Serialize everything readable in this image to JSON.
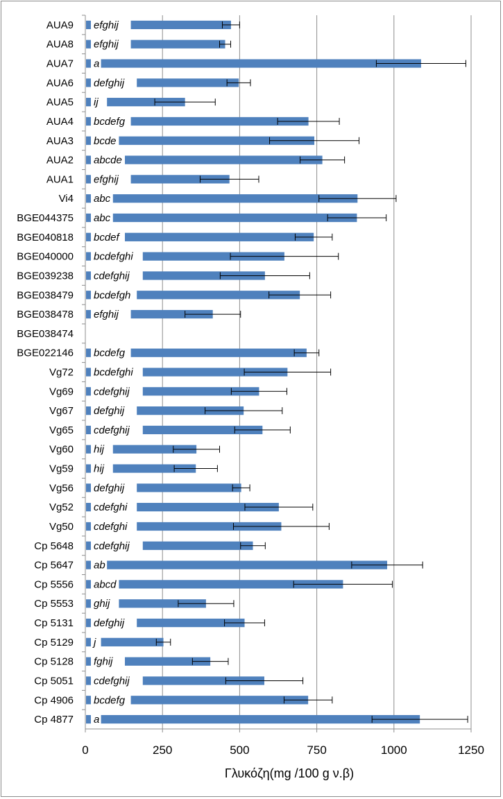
{
  "chart_data": {
    "type": "bar",
    "orientation": "horizontal",
    "title": "",
    "xlabel": "Γλυκόζη(mg /100 g ν.β)",
    "ylabel": "",
    "xlim": [
      0,
      1250
    ],
    "xticks": [
      "0",
      "250",
      "500",
      "750",
      "1000",
      "1250"
    ],
    "grid": "vertical",
    "legend": "none",
    "bar_color": "#4f81bd",
    "categories": [
      "AUA9",
      "AUA8",
      "AUA7",
      "AUA6",
      "AUA5",
      "AUA4",
      "AUA3",
      "AUA2",
      "AUA1",
      "Vi4",
      "BGE044375",
      "BGE040818",
      "BGE040000",
      "BGE039238",
      "BGE038479",
      "BGE038478",
      "BGE038474",
      "BGE022146",
      "Vg72",
      "Vg69",
      "Vg67",
      "Vg65",
      "Vg60",
      "Vg59",
      "Vg56",
      "Vg52",
      "Vg50",
      "Cp 5648",
      "Cp 5647",
      "Cp 5556",
      "Cp 5553",
      "Cp 5131",
      "Cp 5129",
      "Cp 5128",
      "Cp 5051",
      "Cp 4906",
      "Cp 4877"
    ],
    "values": [
      472,
      453,
      1088,
      497,
      323,
      723,
      742,
      768,
      467,
      882,
      880,
      740,
      645,
      582,
      695,
      413,
      null,
      717,
      655,
      563,
      513,
      574,
      360,
      358,
      505,
      627,
      635,
      543,
      978,
      835,
      391,
      516,
      253,
      405,
      580,
      722,
      1084
    ],
    "errors": [
      28,
      18,
      145,
      38,
      98,
      100,
      145,
      72,
      95,
      125,
      95,
      60,
      175,
      145,
      100,
      90,
      null,
      40,
      140,
      90,
      125,
      90,
      75,
      70,
      28,
      110,
      155,
      40,
      115,
      160,
      90,
      65,
      23,
      58,
      125,
      78,
      155
    ],
    "significance_letters": [
      "efghij",
      "efghij",
      "a",
      "defghij",
      "ij",
      "bcdefg",
      "bcde",
      "abcde",
      "efghij",
      "abc",
      "abc",
      "bcdef",
      "bcdefghi",
      "cdefghij",
      "bcdefgh",
      "efghij",
      "",
      "bcdefg",
      "bcdefghi",
      "cdefghij",
      "defghij",
      "cdefghij",
      "hij",
      "hij",
      "defghij",
      "cdefghi",
      "cdefghi",
      "cdefghij",
      "ab",
      "abcd",
      "ghij",
      "defghij",
      "j",
      "fghij",
      "cdefghij",
      "bcdefg",
      "a"
    ]
  }
}
